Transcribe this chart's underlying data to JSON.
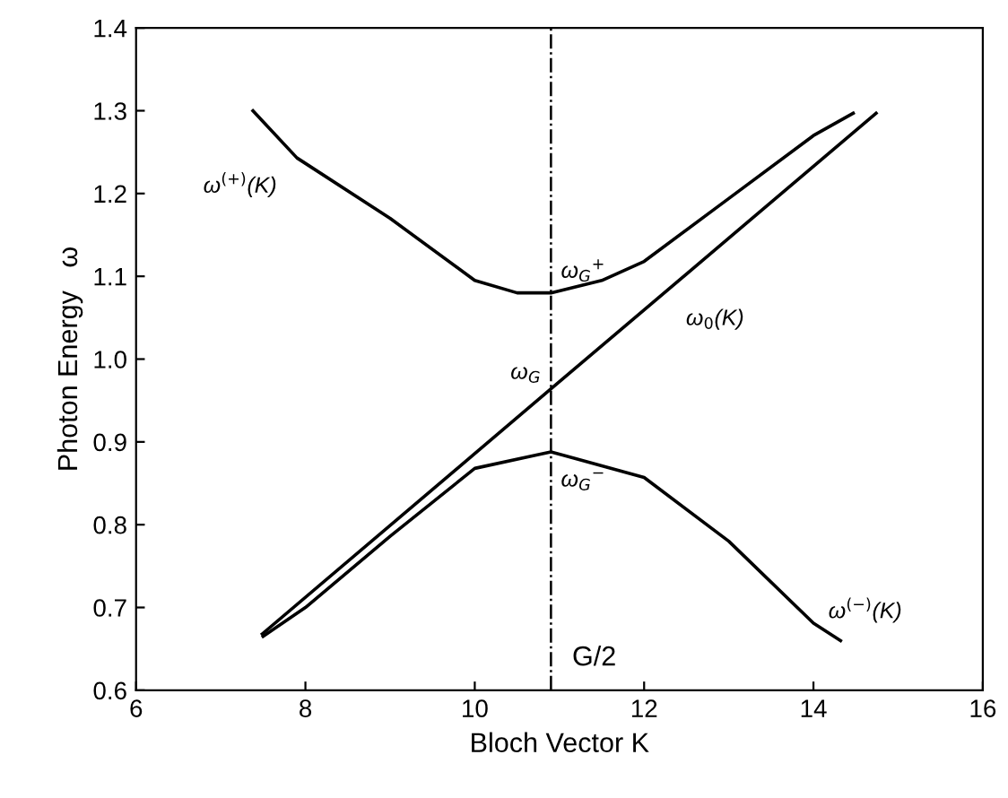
{
  "chart_data": {
    "type": "line",
    "xlabel": "Bloch Vector K",
    "ylabel": "Photon Energy   ω",
    "xlim": [
      6,
      16
    ],
    "ylim": [
      0.6,
      1.4
    ],
    "xticks": [
      6,
      8,
      10,
      12,
      14,
      16
    ],
    "yticks": [
      0.6,
      0.7,
      0.8,
      0.9,
      {
        "value": 1.0,
        "label": "1.0"
      },
      1.1,
      1.2,
      1.3,
      1.4
    ],
    "grid": false,
    "legend": false,
    "marker": "none",
    "line_style": "solid",
    "series": [
      {
        "color": "#000000",
        "x": [
          7.38,
          7.9,
          9,
          10,
          10.5,
          10.9,
          11.5,
          12,
          13,
          14,
          14.47
        ],
        "values": [
          1.3,
          1.243,
          1.17,
          1.095,
          1.08,
          1.08,
          1.095,
          1.118,
          1.194,
          1.27,
          1.297
        ]
      },
      {
        "color": "#000000",
        "x": [
          7.49,
          10.9,
          14.74
        ],
        "values": [
          0.668,
          0.964,
          1.297
        ]
      },
      {
        "color": "#000000",
        "x": [
          7.5,
          8,
          9,
          10,
          10.9,
          12,
          13,
          14,
          14.32
        ],
        "values": [
          0.665,
          0.7,
          0.786,
          0.868,
          0.888,
          0.857,
          0.78,
          0.681,
          0.66
        ]
      }
    ],
    "ref_lines": [
      {
        "axis": "x",
        "value": 10.9,
        "label": "G/2",
        "color": "#000000",
        "line_style": "dashdot"
      }
    ],
    "annotations": [
      {
        "text": "ω$^{(+)}$(K)",
        "x": 7.9,
        "y": 1.243
      },
      {
        "text": "ω$_{G}$$^{+}$",
        "x": 10.9,
        "y": 1.08
      },
      {
        "text": "ω$_{G}$",
        "x": 10.9,
        "y": 0.964
      },
      {
        "text": "ω$_{G}$$^{−}$",
        "x": 10.9,
        "y": 0.888
      },
      {
        "text": "ω$_{0}$(K)",
        "x": 12.2,
        "y": 1.077
      },
      {
        "text": "ω$^{(−)}$(K)",
        "x": 14,
        "y": 0.681
      }
    ]
  }
}
